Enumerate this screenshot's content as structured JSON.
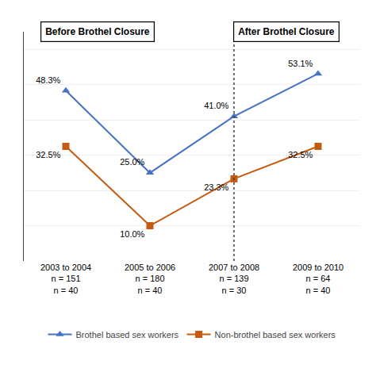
{
  "chart_data": {
    "type": "line",
    "categories": [
      "2003 to 2004\nn = 151\nn = 40",
      "2005 to 2006\nn = 180\nn = 40",
      "2007 to 2008\nn = 139\nn = 30",
      "2009 to 2010\nn = 64\nn = 40"
    ],
    "series": [
      {
        "name": "Brothel based sex workers",
        "color": "#4472C4",
        "marker": "triangle-up",
        "values": [
          48.3,
          25.0,
          41.0,
          53.1
        ],
        "value_labels": [
          "48.3%",
          "25.0%",
          "41.0%",
          "53.1%"
        ]
      },
      {
        "name": "Non-brothel based sex workers",
        "color": "#C55A11",
        "marker": "square",
        "values": [
          32.5,
          10.0,
          23.3,
          32.5
        ],
        "value_labels": [
          "32.5%",
          "10.0%",
          "23.3%",
          "32.5%"
        ]
      }
    ],
    "annotations": [
      "Before Brothel Closure",
      "After Brothel Closure"
    ],
    "ylim": [
      0,
      65
    ],
    "yticks": [
      10,
      20,
      30,
      40,
      50,
      60
    ],
    "grid": true,
    "tick_labels": "x",
    "data_labels": true,
    "legend": "bottom"
  }
}
